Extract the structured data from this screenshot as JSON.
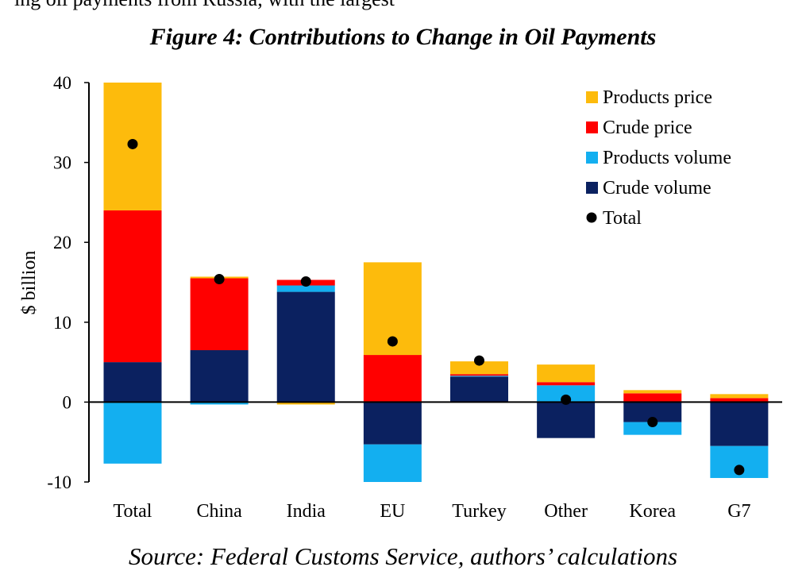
{
  "header_fragment": "ing oil payments from Russia, with the largest",
  "chart_data": {
    "type": "bar",
    "stacked": true,
    "title": "Figure 4: Contributions to Change in Oil Payments",
    "ylabel": "$ billion",
    "xlabel": "",
    "ylim": [
      -10,
      40
    ],
    "yticks": [
      -10,
      0,
      10,
      20,
      30,
      40
    ],
    "legend_position": "top-right",
    "categories": [
      "Total",
      "China",
      "India",
      "EU",
      "Turkey",
      "Other",
      "Korea",
      "G7"
    ],
    "series": [
      {
        "name": "Crude volume",
        "color": "#0b2160",
        "values": [
          5.0,
          6.5,
          13.8,
          -5.3,
          3.2,
          -4.5,
          -2.5,
          -5.5
        ]
      },
      {
        "name": "Products volume",
        "color": "#13aff0",
        "values": [
          -7.7,
          -0.3,
          0.8,
          -4.7,
          0.1,
          2.1,
          -1.6,
          -4.0
        ]
      },
      {
        "name": "Crude price",
        "color": "#ff0000",
        "values": [
          19.0,
          9.0,
          0.7,
          5.9,
          0.2,
          0.4,
          1.1,
          0.5
        ]
      },
      {
        "name": "Products price",
        "color": "#fdbb0c",
        "values": [
          16.0,
          0.2,
          -0.3,
          11.6,
          1.6,
          2.2,
          0.4,
          0.5
        ]
      }
    ],
    "totals": {
      "name": "Total",
      "color": "#000000",
      "values": [
        32.3,
        15.4,
        15.1,
        7.6,
        5.2,
        0.3,
        -2.5,
        -8.5
      ]
    },
    "legend": [
      "Products price",
      "Crude price",
      "Products volume",
      "Crude volume",
      "Total"
    ]
  },
  "source": "Source: Federal Customs Service, authors’ calculations"
}
